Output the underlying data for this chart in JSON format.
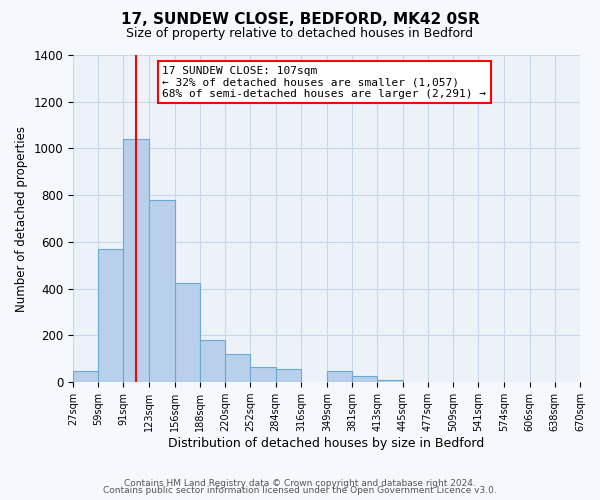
{
  "title": "17, SUNDEW CLOSE, BEDFORD, MK42 0SR",
  "subtitle": "Size of property relative to detached houses in Bedford",
  "xlabel": "Distribution of detached houses by size in Bedford",
  "ylabel": "Number of detached properties",
  "bin_edges": [
    27,
    59,
    91,
    123,
    156,
    188,
    220,
    252,
    284,
    316,
    349,
    381,
    413,
    445,
    477,
    509,
    541,
    574,
    606,
    638,
    670
  ],
  "bar_heights": [
    50,
    570,
    1040,
    780,
    425,
    180,
    120,
    65,
    55,
    0,
    50,
    25,
    10,
    0,
    0,
    0,
    0,
    0,
    0,
    0
  ],
  "bar_color": "#b8d0eb",
  "bar_edge_color": "#6aaad4",
  "grid_color": "#c8d8ea",
  "property_line_x": 107,
  "property_line_color": "red",
  "annotation_text": "17 SUNDEW CLOSE: 107sqm\n← 32% of detached houses are smaller (1,057)\n68% of semi-detached houses are larger (2,291) →",
  "annotation_box_color": "white",
  "annotation_box_edge_color": "red",
  "ylim": [
    0,
    1400
  ],
  "yticks": [
    0,
    200,
    400,
    600,
    800,
    1000,
    1200,
    1400
  ],
  "tick_labels": [
    "27sqm",
    "59sqm",
    "91sqm",
    "123sqm",
    "156sqm",
    "188sqm",
    "220sqm",
    "252sqm",
    "284sqm",
    "316sqm",
    "349sqm",
    "381sqm",
    "413sqm",
    "445sqm",
    "477sqm",
    "509sqm",
    "541sqm",
    "574sqm",
    "606sqm",
    "638sqm",
    "670sqm"
  ],
  "footer_line1": "Contains HM Land Registry data © Crown copyright and database right 2024.",
  "footer_line2": "Contains public sector information licensed under the Open Government Licence v3.0.",
  "fig_bg": "#f5f8fd",
  "plot_bg": "#edf2f9"
}
